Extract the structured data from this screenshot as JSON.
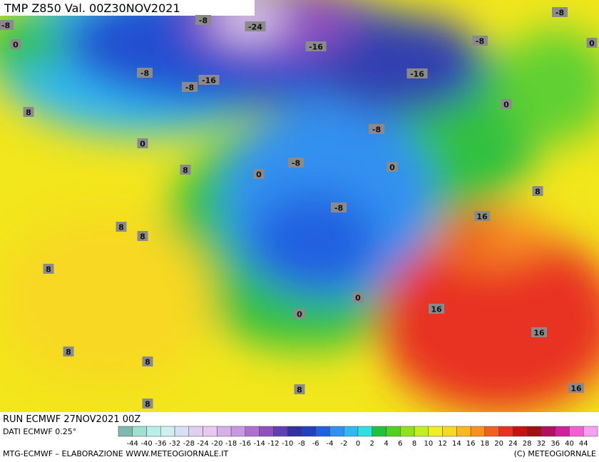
{
  "header": {
    "title": "TMP  Z850  Val.  00Z30NOV2021"
  },
  "map": {
    "labels": [
      "-8",
      "-8",
      "-24",
      "-16",
      "-8",
      "-8",
      "0",
      "0",
      "-8",
      "-16",
      "-8",
      "-16",
      "8",
      "0",
      "-8",
      "0",
      "-8",
      "0",
      "0",
      "8",
      "8",
      "-8",
      "16",
      "8",
      "8",
      "8",
      "0",
      "16",
      "0",
      "16",
      "8",
      "8",
      "8",
      "16",
      "8"
    ]
  },
  "info": {
    "run": "RUN ECMWF 27NOV2021 00Z",
    "source": "DATI ECMWF 0.25°"
  },
  "legend": {
    "labels": [
      "-44",
      "-40",
      "-36",
      "-32",
      "-28",
      "-24",
      "-20",
      "-18",
      "-16",
      "-14",
      "-12",
      "-10",
      "-8",
      "-6",
      "-4",
      "-2",
      "0",
      "2",
      "4",
      "6",
      "8",
      "10",
      "12",
      "14",
      "16",
      "18",
      "20",
      "24",
      "28",
      "32",
      "36",
      "40",
      "44"
    ],
    "colors": [
      "#7fb8b0",
      "#9fe0d0",
      "#b8f0e8",
      "#d0f0f0",
      "#d8e0f8",
      "#e0d0f0",
      "#e8c8f0",
      "#d8b0e8",
      "#c898e0",
      "#b070d0",
      "#9050c0",
      "#6040b0",
      "#3030a0",
      "#2040c0",
      "#2060e0",
      "#3090f0",
      "#30b8f0",
      "#30e0e0",
      "#20c040",
      "#50d020",
      "#90e020",
      "#c0f020",
      "#f0f020",
      "#f8d820",
      "#f8b820",
      "#f89020",
      "#f06020",
      "#e83020",
      "#c81010",
      "#a01010",
      "#b01060",
      "#d020a0",
      "#f060d0",
      "#f8a0f0"
    ]
  },
  "footer": {
    "left": "MTG-ECMWF – ELABORAZIONE WWW.METEOGIORNALE.IT",
    "right": "(C) METEOGIORNALE"
  }
}
